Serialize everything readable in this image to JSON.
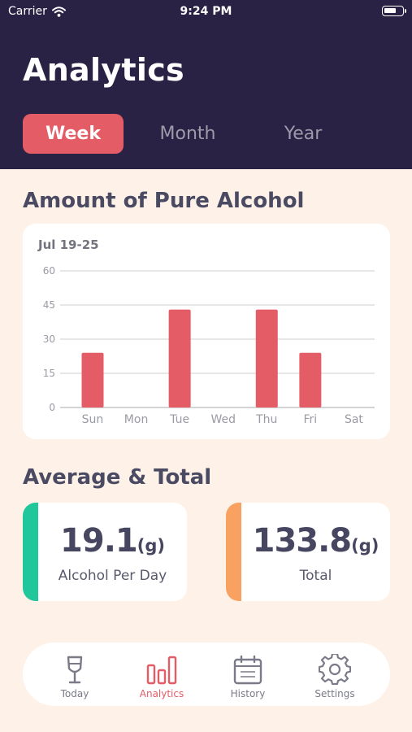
{
  "status_bar": {
    "carrier": "Carrier",
    "time": "9:24 PM",
    "battery_level": 0.7
  },
  "header": {
    "title": "Analytics"
  },
  "tabs": [
    {
      "label": "Week",
      "active": true
    },
    {
      "label": "Month",
      "active": false
    },
    {
      "label": "Year",
      "active": false
    }
  ],
  "sections": {
    "chart_title": "Amount of Pure Alcohol",
    "summary_title": "Average & Total"
  },
  "chart_data": {
    "type": "bar",
    "subtitle": "Jul 19-25",
    "categories": [
      "Sun",
      "Mon",
      "Tue",
      "Wed",
      "Thu",
      "Fri",
      "Sat"
    ],
    "values": [
      24,
      0,
      43,
      0,
      43,
      24,
      0
    ],
    "ylim": [
      0,
      60
    ],
    "yticks": [
      0,
      15,
      30,
      45,
      60
    ],
    "grid": true,
    "bar_color": "#e45c66"
  },
  "stats": {
    "average": {
      "value": "19.1",
      "unit": "(g)",
      "label": "Alcohol Per Day",
      "accent": "#1fc79a"
    },
    "total": {
      "value": "133.8",
      "unit": "(g)",
      "label": "Total",
      "accent": "#f9a160"
    }
  },
  "nav": [
    {
      "label": "Today",
      "icon": "wine-glass-icon",
      "active": false
    },
    {
      "label": "Analytics",
      "icon": "bar-chart-icon",
      "active": true
    },
    {
      "label": "History",
      "icon": "calendar-icon",
      "active": false
    },
    {
      "label": "Settings",
      "icon": "gear-icon",
      "active": false
    }
  ],
  "colors": {
    "header_bg": "#2a2244",
    "page_bg": "#fdf1e8",
    "accent": "#e45c66"
  }
}
